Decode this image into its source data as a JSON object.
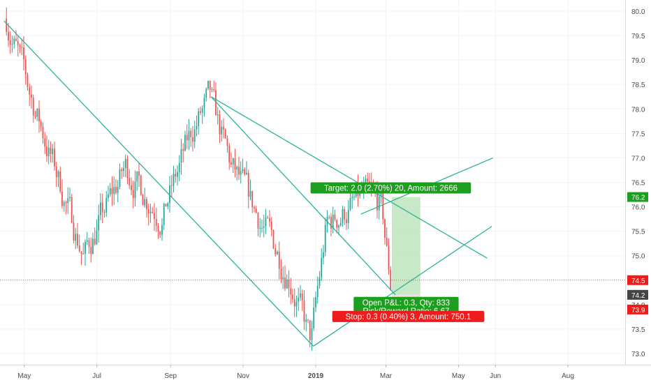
{
  "chart_data": {
    "type": "candlestick",
    "symbol": "",
    "title": "",
    "x_axis": {
      "tick_labels": [
        "May",
        "Jul",
        "Sep",
        "Nov",
        "2019",
        "Mar",
        "May",
        "Jun",
        "Aug"
      ],
      "tick_dates": [
        "2018-05-01",
        "2018-07-01",
        "2018-09-01",
        "2018-11-01",
        "2019-01-01",
        "2019-03-01",
        "2019-05-01",
        "2019-06-01",
        "2019-08-01"
      ]
    },
    "y_axis": {
      "range": [
        72.85,
        80.1
      ],
      "tick_labels": [
        "73.0",
        "73.5",
        "74.0",
        "74.5",
        "75.0",
        "75.5",
        "76.0",
        "76.5",
        "77.0",
        "77.5",
        "78.0",
        "78.5",
        "79.0",
        "79.5",
        "80.0"
      ],
      "tick_values": [
        73.0,
        73.5,
        74.0,
        74.5,
        75.0,
        75.5,
        76.0,
        76.5,
        77.0,
        77.5,
        78.0,
        78.5,
        79.0,
        79.5,
        80.0
      ],
      "position": "right"
    },
    "grid": true,
    "colors": {
      "up": "#26a69a",
      "down": "#ef5350",
      "trendline": "#2bb399",
      "target_zone": "#bde5bd",
      "target_label": "#1e9e1e",
      "stop_label": "#ee1c1c",
      "current_price_line": "#ef5350",
      "price_badge_up": "#1e9e1e",
      "price_badge_down": "#ef1c1c",
      "price_badge_neutral": "#444444"
    },
    "key_points": [
      {
        "date": "2018-04-16",
        "price": 79.85
      },
      {
        "date": "2018-05-10",
        "price": 78.0
      },
      {
        "date": "2018-06-20",
        "price": 75.0
      },
      {
        "date": "2018-07-25",
        "price": 76.8
      },
      {
        "date": "2018-08-25",
        "price": 75.8
      },
      {
        "date": "2018-09-20",
        "price": 77.6
      },
      {
        "date": "2018-10-04",
        "price": 78.2
      },
      {
        "date": "2018-10-22",
        "price": 76.8
      },
      {
        "date": "2018-11-25",
        "price": 75.3
      },
      {
        "date": "2018-12-10",
        "price": 74.6
      },
      {
        "date": "2018-12-28",
        "price": 73.2
      },
      {
        "date": "2019-01-10",
        "price": 75.6
      },
      {
        "date": "2019-02-10",
        "price": 76.2
      },
      {
        "date": "2019-02-25",
        "price": 76.0
      },
      {
        "date": "2019-03-06",
        "price": 74.2
      }
    ],
    "trendlines": [
      {
        "from": {
          "date": "2018-04-14",
          "price": 79.8
        },
        "to": {
          "date": "2018-12-30",
          "price": 73.15
        }
      },
      {
        "from": {
          "date": "2018-10-05",
          "price": 78.25
        },
        "to": {
          "date": "2019-03-09",
          "price": 74.2
        }
      },
      {
        "from": {
          "date": "2018-10-05",
          "price": 78.25
        },
        "to": {
          "date": "2019-05-25",
          "price": 74.95
        }
      },
      {
        "from": {
          "date": "2019-02-08",
          "price": 75.85
        },
        "to": {
          "date": "2019-05-30",
          "price": 77.0
        }
      },
      {
        "from": {
          "date": "2018-12-30",
          "price": 73.15
        },
        "to": {
          "date": "2019-05-29",
          "price": 75.6
        }
      }
    ],
    "position": {
      "entry_date": "2019-03-06",
      "end_date": "2019-03-30",
      "entry_price": 74.2,
      "target_price": 76.2,
      "stop_price": 73.9,
      "target_label": "Target: 2.0 (2.70%) 20, Amount: 2666",
      "stop_label": "Stop: 0.3 (0.40%) 3, Amount: 750.1",
      "pnl_label": "Open P&L: 0.3, Qty: 833",
      "ratio_label": "Risk/Reward Ratio: 6.67"
    },
    "current_price": 74.5,
    "price_badges": [
      {
        "label": "76.2",
        "value": 76.2,
        "color": "#1e9e1e"
      },
      {
        "label": "74.5",
        "value": 74.5,
        "color": "#ef1c1c"
      },
      {
        "label": "74.2",
        "value": 74.2,
        "color": "#444444"
      },
      {
        "label": "73.9",
        "value": 73.9,
        "color": "#ef1c1c"
      }
    ]
  }
}
